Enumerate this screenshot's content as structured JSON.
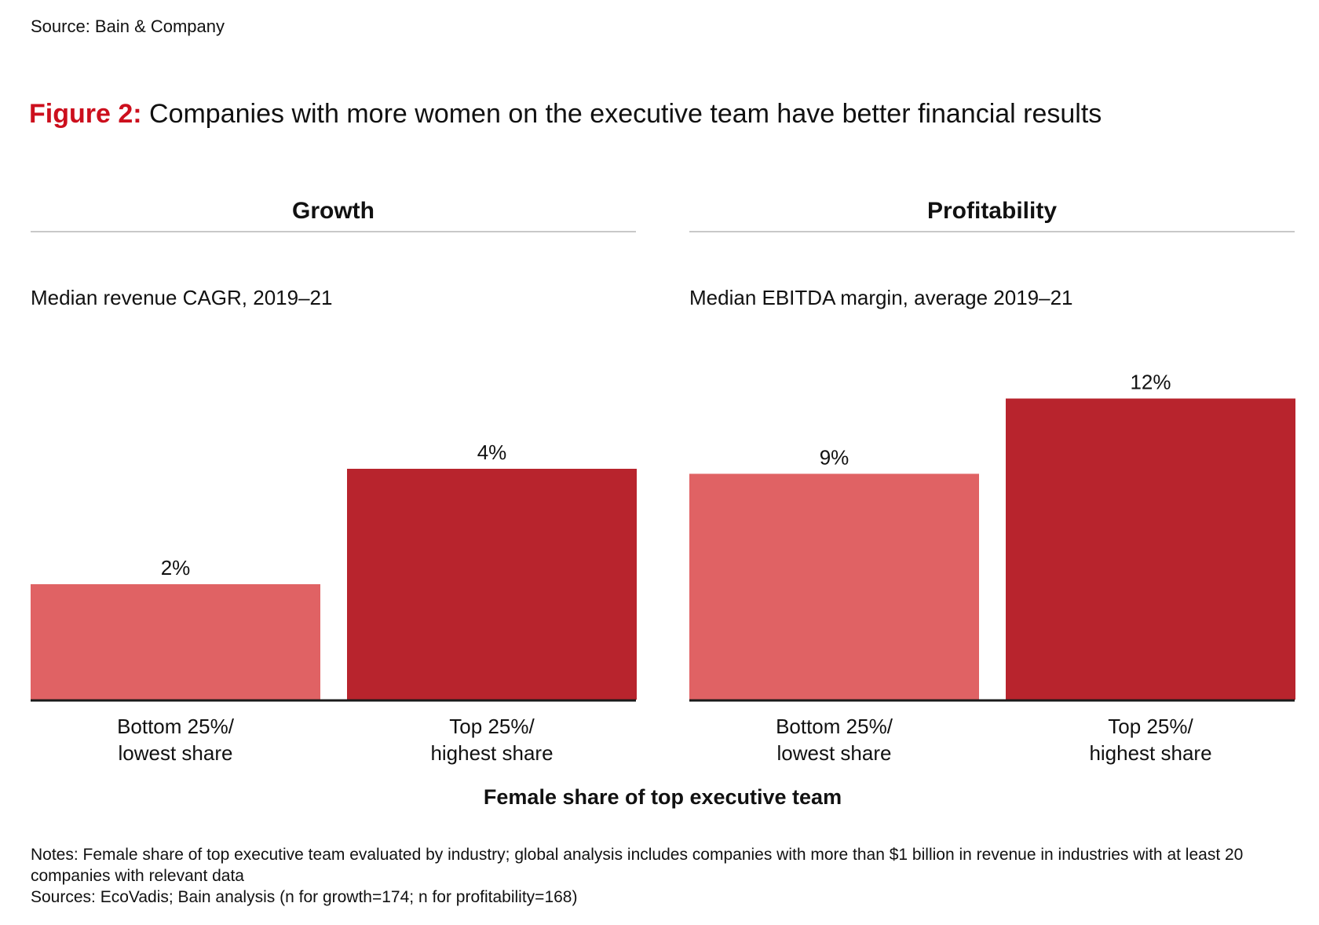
{
  "source_top": "Source: Bain & Company",
  "figure": {
    "label": "Figure 2:",
    "title": " Companies with more women on the executive team have better financial results"
  },
  "colors": {
    "light_red": "#e06264",
    "dark_red": "#b8242d",
    "accent_red": "#cc0f1d",
    "divider": "#c8c8c8",
    "baseline": "#1a1a1a"
  },
  "chart_data": [
    {
      "type": "bar",
      "title": "Growth",
      "subtitle": "Median revenue CAGR, 2019–21",
      "categories": [
        "Bottom 25%/\nlowest share",
        "Top 25%/\nhighest share"
      ],
      "values": [
        2,
        4
      ],
      "value_labels": [
        "2%",
        "4%"
      ],
      "bar_colors": [
        "#e06264",
        "#b8242d"
      ],
      "ylim": [
        0,
        6
      ]
    },
    {
      "type": "bar",
      "title": "Profitability",
      "subtitle": "Median EBITDA margin, average 2019–21",
      "categories": [
        "Bottom 25%/\nlowest share",
        "Top 25%/\nhighest share"
      ],
      "values": [
        9,
        12
      ],
      "value_labels": [
        "9%",
        "12%"
      ],
      "bar_colors": [
        "#e06264",
        "#b8242d"
      ],
      "ylim": [
        0,
        13.8
      ]
    }
  ],
  "xlabel": "Female share of top executive team",
  "notes": {
    "line1": "Notes: Female share of top executive team evaluated by industry; global analysis includes companies with more than $1 billion in revenue in industries with at least 20 companies with relevant data",
    "line2": "Sources: EcoVadis; Bain analysis (n for growth=174; n for profitability=168)"
  }
}
